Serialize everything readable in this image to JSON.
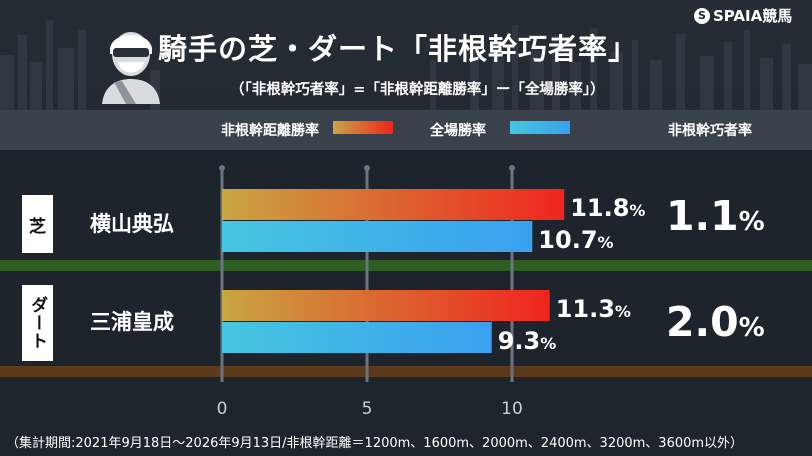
{
  "header": {
    "title": "騎手の芝・ダート「非根幹巧者率」",
    "subtitle": "（「非根幹巧者率」=「非根幹距離勝率」ー「全場勝率」）",
    "brand": "SPAIA競馬",
    "brand_mark": "S",
    "column_label": "非根幹巧者率"
  },
  "colors": {
    "non_core_gradient_start": "#c9a542",
    "non_core_gradient_end": "#f0251e",
    "all_course_gradient_start": "#45c6e0",
    "all_course_gradient_end": "#3aa0f0",
    "turf_stripe": "#2e5e22",
    "dirt_stripe": "#5c3a1c",
    "grid": "#6b7480"
  },
  "rows": [
    {
      "category": "芝",
      "jockey": "横山典弘",
      "ratio_value": "1.1",
      "ratio_unit": "%"
    },
    {
      "category": "ダート",
      "jockey": "三浦皇成",
      "ratio_value": "2.0",
      "ratio_unit": "%"
    }
  ],
  "chart_data": {
    "type": "bar",
    "orientation": "horizontal",
    "categories": [
      "横山典弘",
      "三浦皇成"
    ],
    "series": [
      {
        "name": "非根幹距離勝率",
        "values": [
          11.8,
          11.3
        ],
        "labels": [
          "11.8",
          "11.3"
        ]
      },
      {
        "name": "全場勝率",
        "values": [
          10.7,
          9.3
        ],
        "labels": [
          "10.7",
          "9.3"
        ]
      }
    ],
    "value_unit": "%",
    "x_ticks": [
      0,
      5,
      10
    ],
    "x_tick_labels": [
      "0",
      "5",
      "10"
    ],
    "xlim": [
      0,
      12.5
    ],
    "grid": true,
    "legend": "top"
  },
  "footnote": "（集計期間:2021年9月18日～2026年9月13日/非根幹距離＝1200m、1600m、2000m、2400m、3200m、3600m以外）"
}
